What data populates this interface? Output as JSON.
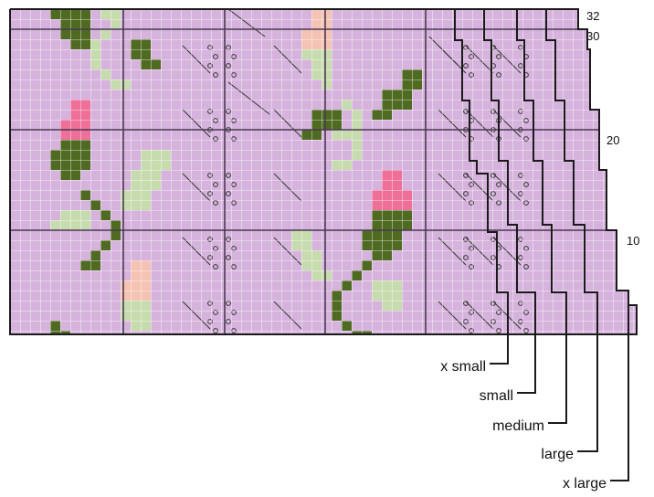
{
  "chart": {
    "background": "#d6b3dc",
    "grid_color": "#ffffff",
    "section_line_color": "#4a3a52",
    "outline_color": "#1a1a1a",
    "leaf_dark": "#4f6b22",
    "leaf_light": "#c7dcae",
    "bud_pink": "#ee6f98",
    "bud_peach": "#f5c3b4",
    "rows": 32,
    "row_labels": [
      {
        "label": "32",
        "row": 32
      },
      {
        "label": "30",
        "row": 30
      },
      {
        "label": "20",
        "row": 20
      },
      {
        "label": "10",
        "row": 10
      }
    ],
    "sizes": [
      {
        "name": "x small"
      },
      {
        "name": "small"
      },
      {
        "name": "medium"
      },
      {
        "name": "large"
      },
      {
        "name": "x large"
      }
    ]
  }
}
